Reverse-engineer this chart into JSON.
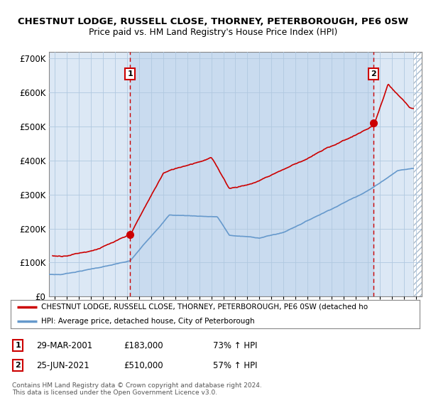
{
  "title_line1": "CHESTNUT LODGE, RUSSELL CLOSE, THORNEY, PETERBOROUGH, PE6 0SW",
  "title_line2": "Price paid vs. HM Land Registry's House Price Index (HPI)",
  "ylim": [
    0,
    720000
  ],
  "yticks": [
    0,
    100000,
    200000,
    300000,
    400000,
    500000,
    600000,
    700000
  ],
  "ytick_labels": [
    "£0",
    "£100K",
    "£200K",
    "£300K",
    "£400K",
    "£500K",
    "£600K",
    "£700K"
  ],
  "sale1_date_num": 2001.25,
  "sale1_price": 183000,
  "sale1_label": "1",
  "sale1_date_str": "29-MAR-2001",
  "sale1_price_str": "£183,000",
  "sale1_hpi_str": "73% ↑ HPI",
  "sale2_date_num": 2021.5,
  "sale2_price": 510000,
  "sale2_label": "2",
  "sale2_date_str": "25-JUN-2021",
  "sale2_price_str": "£510,000",
  "sale2_hpi_str": "57% ↑ HPI",
  "line1_color": "#cc0000",
  "line2_color": "#6699cc",
  "vline_color": "#cc0000",
  "bg_color": "#dce8f5",
  "grid_color": "#b0c8e0",
  "hatch_color": "#c0d0e0",
  "legend_label1": "CHESTNUT LODGE, RUSSELL CLOSE, THORNEY, PETERBOROUGH, PE6 0SW (detached ho",
  "legend_label2": "HPI: Average price, detached house, City of Peterborough",
  "copyright_text": "Contains HM Land Registry data © Crown copyright and database right 2024.\nThis data is licensed under the Open Government Licence v3.0.",
  "xmin": 1994.5,
  "xmax": 2025.5,
  "data_end": 2024.8
}
